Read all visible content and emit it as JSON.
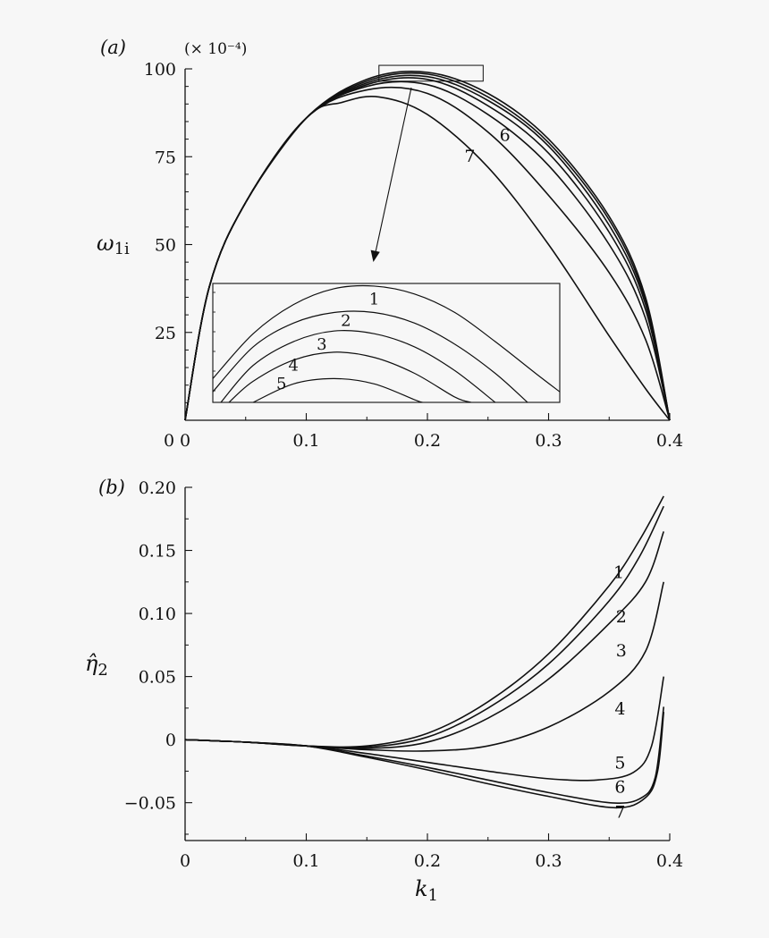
{
  "chart_data": [
    {
      "panel_label": "(a)",
      "type": "line",
      "scale_note": "(× 10⁻⁴)",
      "xlabel": "",
      "ylabel_main": "ω",
      "ylabel_sub": "1i",
      "xlim": [
        0,
        0.4
      ],
      "ylim": [
        0,
        100
      ],
      "x_ticks": [
        "0",
        "0.1",
        "0.2",
        "0.3",
        "0.4"
      ],
      "y_ticks": [
        "25",
        "50",
        "75",
        "100"
      ],
      "series": [
        {
          "name": "1",
          "x": [
            0,
            0.02,
            0.05,
            0.1,
            0.15,
            0.2,
            0.25,
            0.3,
            0.35,
            0.38,
            0.4
          ],
          "y": [
            0,
            38,
            62,
            86,
            97,
            99,
            93,
            80,
            58,
            35,
            0
          ]
        },
        {
          "name": "2",
          "x": [
            0,
            0.02,
            0.05,
            0.1,
            0.15,
            0.2,
            0.25,
            0.3,
            0.35,
            0.38,
            0.4
          ],
          "y": [
            0,
            38,
            62,
            86,
            96.5,
            98.5,
            92,
            79,
            57,
            34,
            0
          ]
        },
        {
          "name": "3",
          "x": [
            0,
            0.02,
            0.05,
            0.1,
            0.15,
            0.2,
            0.25,
            0.3,
            0.35,
            0.38,
            0.4
          ],
          "y": [
            0,
            38,
            62,
            86,
            96,
            97.8,
            91,
            78,
            55.5,
            33,
            0
          ]
        },
        {
          "name": "4",
          "x": [
            0,
            0.02,
            0.05,
            0.1,
            0.15,
            0.2,
            0.25,
            0.3,
            0.35,
            0.38,
            0.4
          ],
          "y": [
            0,
            38,
            62,
            86,
            95.5,
            97,
            89.5,
            76,
            53.5,
            31.5,
            0
          ]
        },
        {
          "name": "5",
          "x": [
            0,
            0.02,
            0.05,
            0.1,
            0.15,
            0.2,
            0.25,
            0.3,
            0.35,
            0.38,
            0.4
          ],
          "y": [
            0,
            38,
            62,
            86,
            95,
            95.5,
            87,
            72.5,
            50,
            29,
            0
          ]
        },
        {
          "name": "6",
          "x": [
            0,
            0.02,
            0.05,
            0.1,
            0.15,
            0.2,
            0.25,
            0.3,
            0.35,
            0.38,
            0.4
          ],
          "y": [
            0,
            38,
            62,
            86,
            94,
            93,
            82,
            64,
            42,
            23,
            0
          ]
        },
        {
          "name": "7",
          "x": [
            0,
            0.02,
            0.05,
            0.1,
            0.13,
            0.16,
            0.2,
            0.25,
            0.3,
            0.35,
            0.38,
            0.4
          ],
          "y": [
            0,
            38,
            62,
            86,
            90.5,
            92,
            87,
            72,
            50,
            24,
            9,
            0
          ]
        }
      ],
      "label_positions": [
        {
          "text": "6",
          "x": 0.264,
          "y": 79.5
        },
        {
          "text": "7",
          "x": 0.235,
          "y": 73.5
        }
      ],
      "zoom_box": {
        "x": [
          0.16,
          0.246
        ],
        "y": [
          96.5,
          101
        ]
      },
      "inset": {
        "x_range": [
          0.16,
          0.246
        ],
        "y_range": [
          96.5,
          101
        ],
        "labels": [
          {
            "text": "1",
            "x": 0.2,
            "y": 100.2
          },
          {
            "text": "2",
            "x": 0.193,
            "y": 99.4
          },
          {
            "text": "3",
            "x": 0.187,
            "y": 98.5
          },
          {
            "text": "4",
            "x": 0.18,
            "y": 97.7
          },
          {
            "text": "5",
            "x": 0.177,
            "y": 97.0
          }
        ]
      }
    },
    {
      "panel_label": "(b)",
      "type": "line",
      "xlabel_main": "k",
      "xlabel_sub": "1",
      "ylabel_main": "η̂",
      "ylabel_sub": "2",
      "xlim": [
        0,
        0.4
      ],
      "ylim": [
        -0.08,
        0.2
      ],
      "x_ticks": [
        "0",
        "0.1",
        "0.2",
        "0.3",
        "0.4"
      ],
      "y_ticks": [
        "−0.05",
        "0",
        "0.05",
        "0.10",
        "0.15",
        "0.20"
      ],
      "series": [
        {
          "name": "1",
          "x": [
            0,
            0.05,
            0.1,
            0.15,
            0.2,
            0.25,
            0.3,
            0.35,
            0.375,
            0.395
          ],
          "y": [
            0,
            -0.002,
            -0.005,
            -0.005,
            0.005,
            0.03,
            0.068,
            0.122,
            0.158,
            0.193
          ]
        },
        {
          "name": "2",
          "x": [
            0,
            0.05,
            0.1,
            0.15,
            0.2,
            0.25,
            0.3,
            0.35,
            0.375,
            0.395
          ],
          "y": [
            0,
            -0.002,
            -0.005,
            -0.006,
            0.002,
            0.025,
            0.06,
            0.11,
            0.145,
            0.185
          ]
        },
        {
          "name": "3",
          "x": [
            0,
            0.05,
            0.1,
            0.15,
            0.2,
            0.25,
            0.3,
            0.35,
            0.38,
            0.395
          ],
          "y": [
            0,
            -0.002,
            -0.005,
            -0.007,
            -0.002,
            0.017,
            0.048,
            0.092,
            0.125,
            0.165
          ]
        },
        {
          "name": "4",
          "x": [
            0,
            0.05,
            0.1,
            0.15,
            0.2,
            0.25,
            0.3,
            0.35,
            0.38,
            0.395
          ],
          "y": [
            0,
            -0.002,
            -0.005,
            -0.008,
            -0.009,
            -0.005,
            0.01,
            0.038,
            0.07,
            0.125
          ]
        },
        {
          "name": "5",
          "x": [
            0,
            0.05,
            0.1,
            0.15,
            0.2,
            0.25,
            0.3,
            0.34,
            0.37,
            0.385,
            0.395
          ],
          "y": [
            0,
            -0.002,
            -0.005,
            -0.011,
            -0.018,
            -0.025,
            -0.031,
            -0.032,
            -0.026,
            -0.005,
            0.05
          ]
        },
        {
          "name": "6",
          "x": [
            0,
            0.05,
            0.1,
            0.15,
            0.2,
            0.25,
            0.3,
            0.35,
            0.375,
            0.388,
            0.395
          ],
          "y": [
            0,
            -0.002,
            -0.005,
            -0.013,
            -0.022,
            -0.032,
            -0.042,
            -0.05,
            -0.047,
            -0.03,
            0.026
          ]
        },
        {
          "name": "7",
          "x": [
            0,
            0.05,
            0.1,
            0.15,
            0.2,
            0.25,
            0.3,
            0.355,
            0.38,
            0.39,
            0.395
          ],
          "y": [
            0,
            -0.002,
            -0.005,
            -0.014,
            -0.024,
            -0.035,
            -0.045,
            -0.054,
            -0.046,
            -0.025,
            0.022
          ]
        }
      ],
      "label_positions": [
        {
          "text": "1",
          "x": 0.358,
          "y": 0.128
        },
        {
          "text": "2",
          "x": 0.36,
          "y": 0.093
        },
        {
          "text": "3",
          "x": 0.36,
          "y": 0.066
        },
        {
          "text": "4",
          "x": 0.359,
          "y": 0.02
        },
        {
          "text": "5",
          "x": 0.359,
          "y": -0.023
        },
        {
          "text": "6",
          "x": 0.359,
          "y": -0.042
        },
        {
          "text": "7",
          "x": 0.359,
          "y": -0.062
        }
      ]
    }
  ]
}
